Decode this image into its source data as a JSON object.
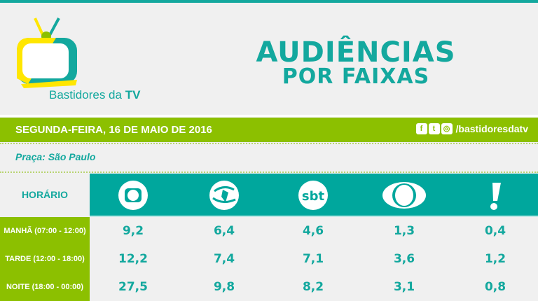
{
  "brand": {
    "name": "Bastidores da",
    "name_bold": "TV",
    "colors": {
      "teal": "#13a89e",
      "green": "#8cc000",
      "yellow": "#ffe600"
    }
  },
  "title": {
    "line1": "AUDIÊNCIAS",
    "line2": "POR FAIXAS"
  },
  "bar": {
    "date": "SEGUNDA-FEIRA, 16 DE MAIO DE 2016",
    "social_icons": [
      "facebook-icon",
      "twitter-icon",
      "instagram-icon"
    ],
    "handle": "/bastidoresdatv"
  },
  "praca": "Praça: São Paulo",
  "table": {
    "header": "HORÁRIO",
    "channels": [
      "globo",
      "record",
      "sbt",
      "band",
      "redetv"
    ],
    "rows": [
      {
        "label": "MANHÃ (07:00 - 12:00)",
        "values": [
          "9,2",
          "6,4",
          "4,6",
          "1,3",
          "0,4"
        ]
      },
      {
        "label": "TARDE (12:00 - 18:00)",
        "values": [
          "12,2",
          "7,4",
          "7,1",
          "3,6",
          "1,2"
        ]
      },
      {
        "label": "NOITE (18:00 - 00:00)",
        "values": [
          "27,5",
          "9,8",
          "8,2",
          "3,1",
          "0,8"
        ]
      }
    ]
  }
}
